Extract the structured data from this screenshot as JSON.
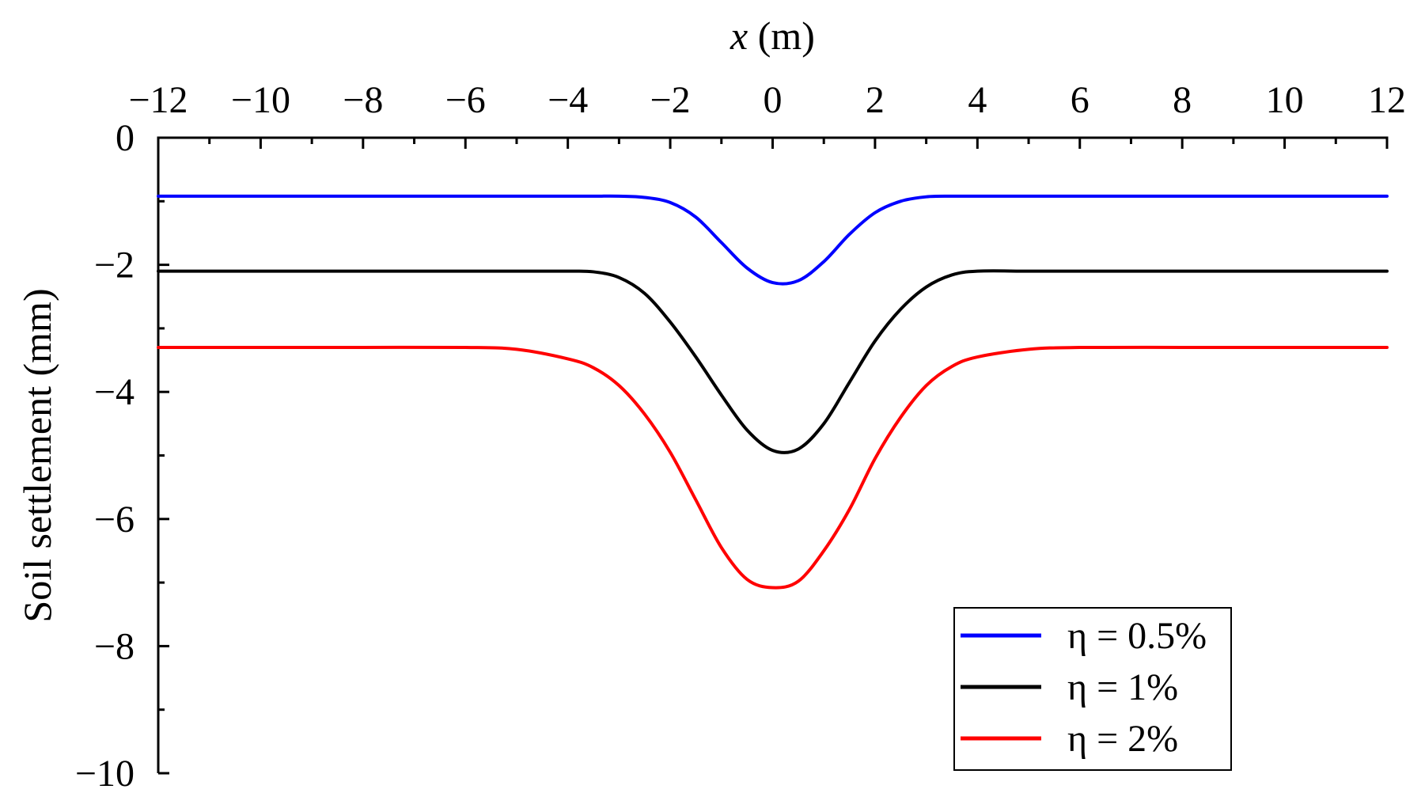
{
  "chart_data": {
    "type": "line",
    "title": "",
    "xlabel": "x (m)",
    "xlabel_var": "x",
    "xlabel_unit": " (m)",
    "ylabel": "Soil settlement (mm)",
    "xlim": [
      -12,
      12
    ],
    "ylim": [
      -10,
      0
    ],
    "x_ticks": [
      -12,
      -10,
      -8,
      -6,
      -4,
      -2,
      0,
      2,
      4,
      6,
      8,
      10,
      12
    ],
    "x_tick_labels": [
      "−12",
      "−10",
      "−8",
      "−6",
      "−4",
      "−2",
      "0",
      "2",
      "4",
      "6",
      "8",
      "10",
      "12"
    ],
    "y_ticks": [
      0,
      -2,
      -4,
      -6,
      -8,
      -10
    ],
    "y_tick_labels": [
      "0",
      "−2",
      "−4",
      "−6",
      "−8",
      "−10"
    ],
    "x_axis_position": "top",
    "grid": false,
    "legend_position": "bottom-right",
    "x": [
      -12,
      -10,
      -8,
      -6,
      -5,
      -4,
      -3.5,
      -3,
      -2.5,
      -2,
      -1.5,
      -1,
      -0.5,
      0,
      0.5,
      1,
      1.5,
      2,
      2.5,
      3,
      3.5,
      4,
      5,
      6,
      8,
      10,
      12
    ],
    "series": [
      {
        "name": "η = 0.5%",
        "color": "#0000ff",
        "values": [
          -0.92,
          -0.92,
          -0.92,
          -0.92,
          -0.92,
          -0.92,
          -0.92,
          -0.92,
          -0.94,
          -1.02,
          -1.25,
          -1.65,
          -2.05,
          -2.28,
          -2.25,
          -1.95,
          -1.52,
          -1.18,
          -1.0,
          -0.93,
          -0.92,
          -0.92,
          -0.92,
          -0.92,
          -0.92,
          -0.92,
          -0.92
        ]
      },
      {
        "name": "η = 1%",
        "color": "#000000",
        "values": [
          -2.1,
          -2.1,
          -2.1,
          -2.1,
          -2.1,
          -2.1,
          -2.11,
          -2.2,
          -2.45,
          -2.9,
          -3.45,
          -4.05,
          -4.6,
          -4.92,
          -4.9,
          -4.5,
          -3.85,
          -3.2,
          -2.7,
          -2.35,
          -2.16,
          -2.1,
          -2.1,
          -2.1,
          -2.1,
          -2.1,
          -2.1
        ]
      },
      {
        "name": "η = 2%",
        "color": "#ff0000",
        "values": [
          -3.3,
          -3.3,
          -3.3,
          -3.3,
          -3.33,
          -3.48,
          -3.62,
          -3.9,
          -4.35,
          -4.95,
          -5.7,
          -6.45,
          -6.95,
          -7.08,
          -6.98,
          -6.5,
          -5.85,
          -5.05,
          -4.4,
          -3.9,
          -3.6,
          -3.45,
          -3.33,
          -3.3,
          -3.3,
          -3.3,
          -3.3
        ]
      }
    ]
  }
}
